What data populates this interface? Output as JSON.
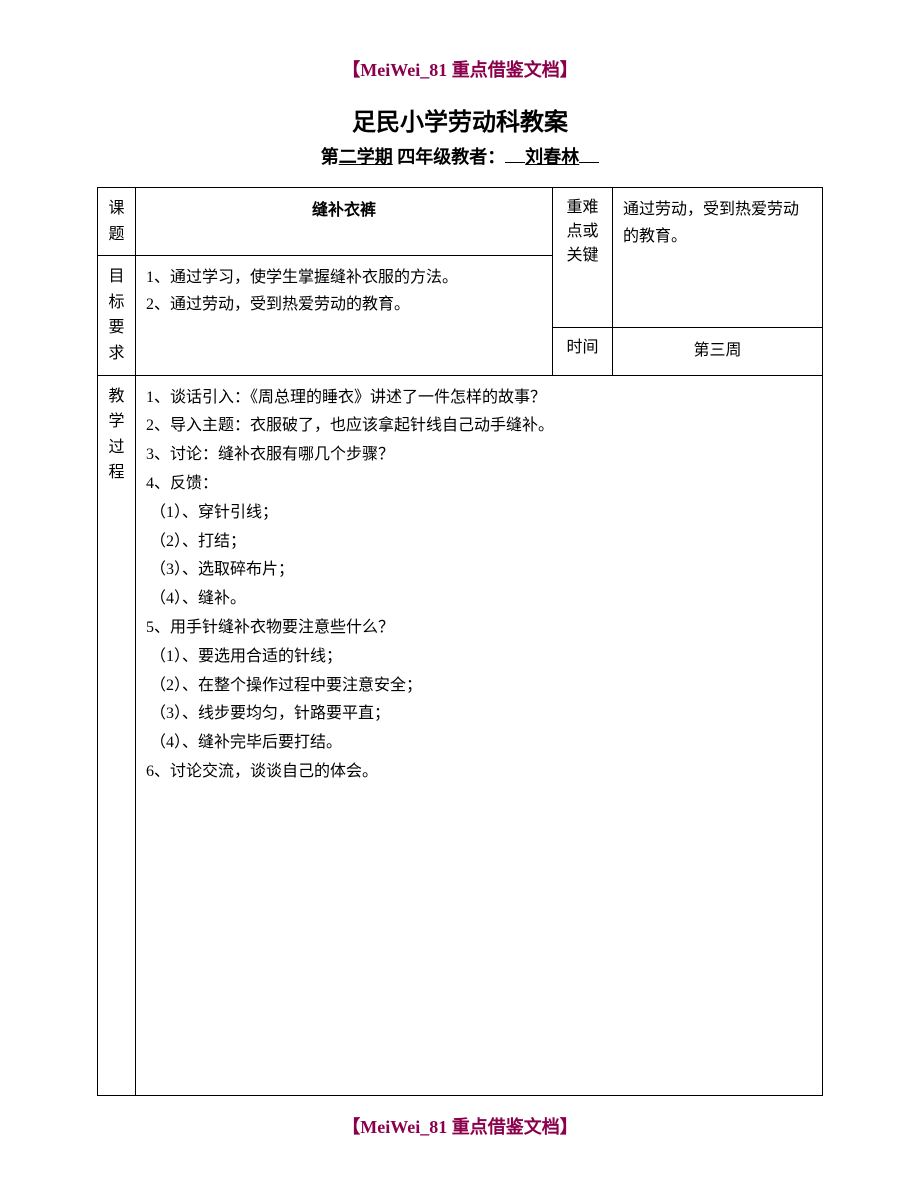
{
  "header": "【MeiWei_81 重点借鉴文档】",
  "footer": "【MeiWei_81 重点借鉴文档】",
  "title": "足民小学劳动科教案",
  "subtitle_prefix": "第",
  "subtitle_term": "二学期",
  "subtitle_grade": "  四年级教者：",
  "subtitle_teacher": "刘春林",
  "labels": {
    "topic": "课题",
    "goals": "目标要求",
    "keypoint": "重难点或关键",
    "time": "时间",
    "process": "教学过程"
  },
  "topic": "缝补衣裤",
  "goals_text": "1、通过学习，使学生掌握缝补衣服的方法。\n2、通过劳动，受到热爱劳动的教育。",
  "keypoint_text": "通过劳动，受到热爱劳动的教育。",
  "time_value": "第三周",
  "process_text": "1、谈话引入：《周总理的睡衣》讲述了一件怎样的故事？\n2、导入主题：衣服破了，也应该拿起针线自己动手缝补。\n3、讨论：缝补衣服有哪几个步骤？\n4、反馈：\n （1）、穿针引线；\n （2）、打结；\n （3）、选取碎布片；\n （4）、缝补。\n5、用手针缝补衣物要注意些什么？\n （1）、要选用合适的针线；\n （2）、在整个操作过程中要注意安全；\n （3）、线步要均匀，针路要平直；\n （4）、缝补完毕后要打结。\n6、讨论交流，谈谈自己的体会。"
}
